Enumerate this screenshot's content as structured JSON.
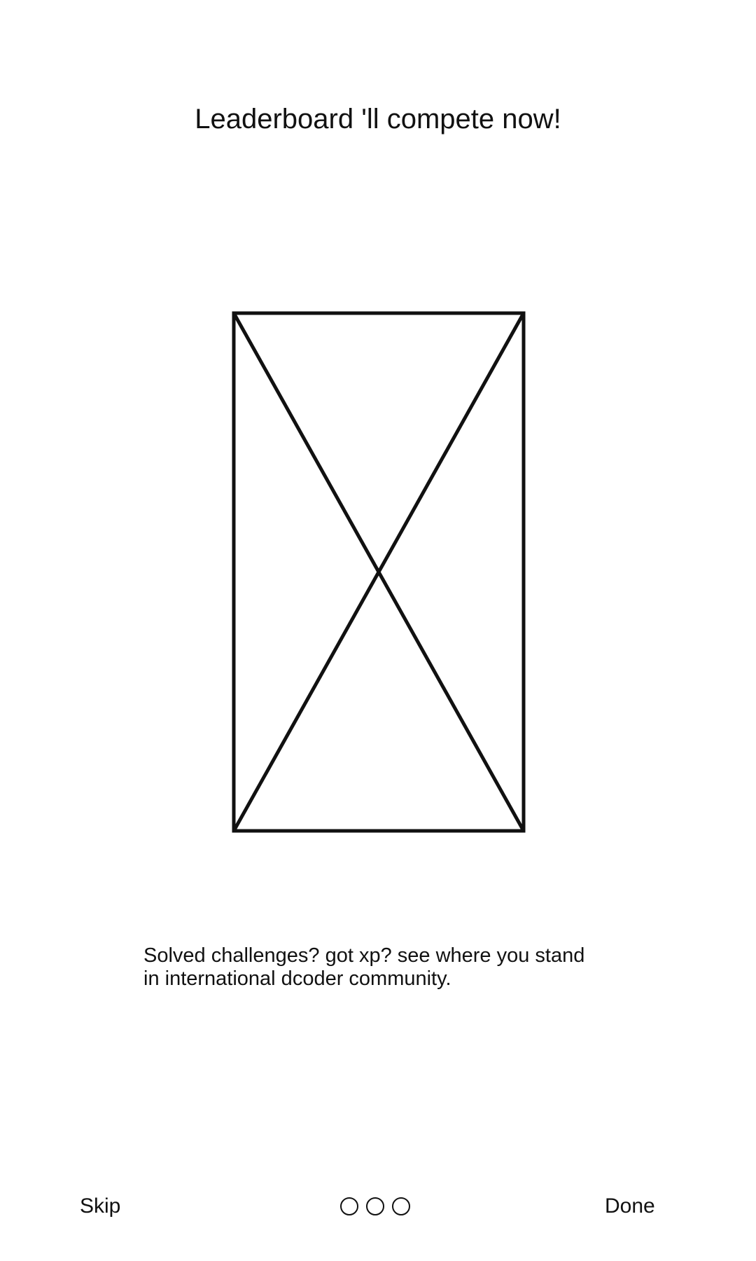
{
  "screen": {
    "title": "Leaderboard 'll compete now!",
    "description_line1": "Solved challenges? got xp? see where you stand",
    "description_line2": "in international dcoder community."
  },
  "image_placeholder": {
    "icon": "image-placeholder-icon"
  },
  "footer": {
    "skip_label": "Skip",
    "done_label": "Done",
    "pager_dots": 3
  }
}
